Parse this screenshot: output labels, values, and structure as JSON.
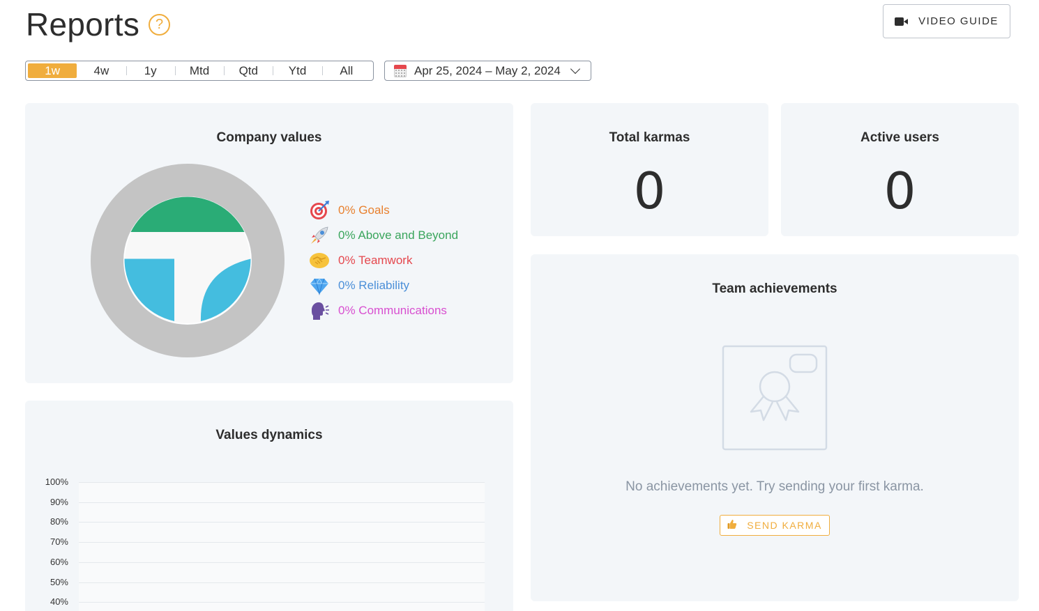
{
  "header": {
    "title": "Reports",
    "help_symbol": "?",
    "video_guide_label": "VIDEO GUIDE"
  },
  "filters": {
    "periods": [
      "1w",
      "4w",
      "1y",
      "Mtd",
      "Qtd",
      "Ytd",
      "All"
    ],
    "active_period": "1w",
    "date_range": "Apr 25, 2024 – May 2, 2024"
  },
  "company_values": {
    "title": "Company values",
    "items": [
      {
        "label": "0% Goals",
        "icon": "target-icon",
        "color": "#e8802e"
      },
      {
        "label": "0% Above and Beyond",
        "icon": "rocket-icon",
        "color": "#3aa55c"
      },
      {
        "label": "0% Teamwork",
        "icon": "handshake-icon",
        "color": "#e5474d"
      },
      {
        "label": "0% Reliability",
        "icon": "diamond-icon",
        "color": "#4b8fd8"
      },
      {
        "label": "0% Communications",
        "icon": "speaking-head-icon",
        "color": "#d84fd0"
      }
    ]
  },
  "total_karmas": {
    "title": "Total karmas",
    "value": "0"
  },
  "active_users": {
    "title": "Active users",
    "value": "0"
  },
  "team_achievements": {
    "title": "Team achievements",
    "empty_message": "No achievements yet. Try sending your first karma.",
    "send_karma_label": "SEND KARMA",
    "send_karma_icon": "thumbs-up-icon"
  },
  "values_dynamics": {
    "title": "Values dynamics"
  },
  "chart_data": {
    "type": "line",
    "title": "Values dynamics",
    "y_tick_labels": [
      "100%",
      "90%",
      "80%",
      "70%",
      "60%",
      "50%",
      "40%"
    ],
    "ylim": [
      40,
      100
    ],
    "series": []
  },
  "colors": {
    "accent": "#f0ad3d",
    "card_bg": "#f3f6f9",
    "donut_ring": "#c4c4c4",
    "logo_green": "#2aac76",
    "logo_blue": "#44bddf"
  }
}
